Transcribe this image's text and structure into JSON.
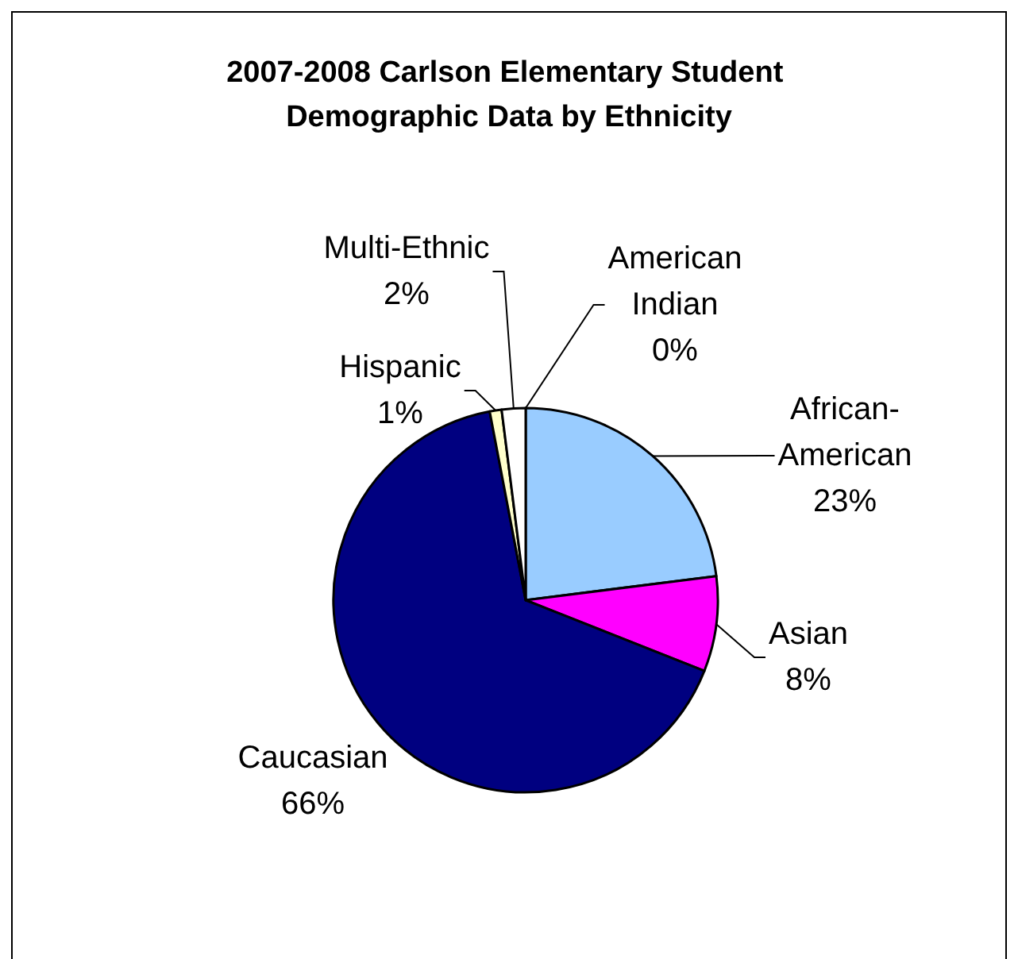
{
  "chart_data": {
    "type": "pie",
    "title": "2007-2008 Carlson Elementary Student Demographic Data by Ethnicity",
    "categories": [
      "American Indian",
      "African-American",
      "Asian",
      "Caucasian",
      "Hispanic",
      "Multi-Ethnic"
    ],
    "values": [
      0,
      23,
      8,
      66,
      1,
      2
    ],
    "colors": [
      "#000000",
      "#99ccff",
      "#ff00ff",
      "#000080",
      "#ffffcc",
      "#ffffff"
    ],
    "value_labels": [
      "0%",
      "23%",
      "8%",
      "66%",
      "1%",
      "2%"
    ]
  }
}
